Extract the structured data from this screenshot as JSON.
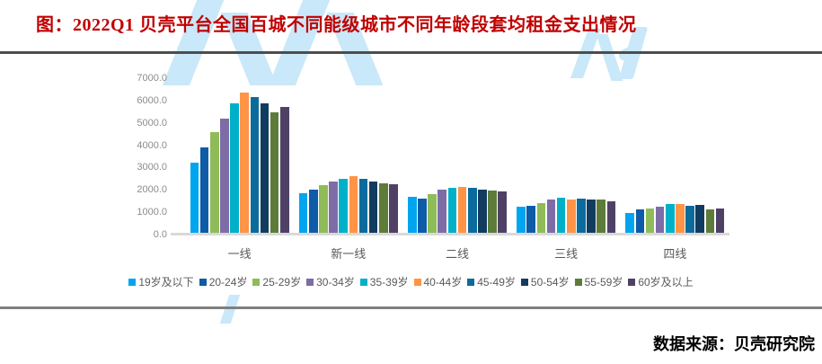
{
  "title": "图：2022Q1 贝壳平台全国百城不同能级城市不同年龄段套均租金支出情况",
  "source": "数据来源：贝壳研究院",
  "colors": {
    "title_text": "#c00000",
    "top_rule": "#4d4d4d",
    "bottom_rule": "#808080",
    "axis_line": "#d9d9d9",
    "axis_label": "#8c8c8c",
    "category_label": "#595959",
    "legend_label": "#595959",
    "watermark": "#c9e8f9"
  },
  "chart_data": {
    "type": "bar",
    "title": "2022Q1 贝壳平台全国百城不同能级城市不同年龄段套均租金支出情况",
    "categories": [
      "一线",
      "新一线",
      "二线",
      "三线",
      "四线"
    ],
    "series": [
      {
        "name": "19岁及以下",
        "color": "#00a5f0",
        "values": [
          3230,
          1850,
          1700,
          1260,
          950
        ]
      },
      {
        "name": "20-24岁",
        "color": "#0e5ba8",
        "values": [
          3900,
          2000,
          1620,
          1280,
          1120
        ]
      },
      {
        "name": "25-29岁",
        "color": "#8fbc58",
        "values": [
          4600,
          2210,
          1800,
          1420,
          1160
        ]
      },
      {
        "name": "30-34岁",
        "color": "#7e6ca6",
        "values": [
          5200,
          2390,
          2000,
          1560,
          1260
        ]
      },
      {
        "name": "35-39岁",
        "color": "#00b0c8",
        "values": [
          5870,
          2500,
          2100,
          1660,
          1360
        ]
      },
      {
        "name": "40-44岁",
        "color": "#ff9447",
        "values": [
          6340,
          2600,
          2130,
          1580,
          1360
        ]
      },
      {
        "name": "45-49岁",
        "color": "#0c6b9d",
        "values": [
          6160,
          2500,
          2090,
          1590,
          1270
        ]
      },
      {
        "name": "50-54岁",
        "color": "#123c5f",
        "values": [
          5890,
          2390,
          2030,
          1560,
          1340
        ]
      },
      {
        "name": "55-59岁",
        "color": "#5d7c39",
        "values": [
          5490,
          2280,
          1970,
          1560,
          1120
        ]
      },
      {
        "name": "60岁及以上",
        "color": "#4f4166",
        "values": [
          5730,
          2270,
          1930,
          1500,
          1160
        ]
      }
    ],
    "ylim": [
      0,
      7000
    ],
    "ytick_step": 1000,
    "ytick_format": "one_decimal",
    "grid": false,
    "legend_position": "bottom"
  }
}
